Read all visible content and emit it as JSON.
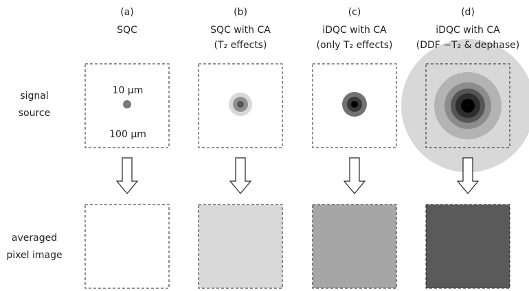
{
  "columns": [
    {
      "label": "(a)",
      "lines": [
        "SQC"
      ]
    },
    {
      "label": "(b)",
      "lines": [
        "SQC with CA",
        "(T₂ effects)"
      ]
    },
    {
      "label": "(c)",
      "lines": [
        "iDQC with CA",
        "(only T₂ effects)"
      ]
    },
    {
      "label": "(d)",
      "lines": [
        "iDQC with CA",
        "(DDF −T₂ & dephase)"
      ]
    }
  ],
  "rows": [
    {
      "lines": [
        "signal",
        "source"
      ]
    },
    {
      "lines": [
        "averaged",
        "pixel image"
      ]
    }
  ],
  "annotations": {
    "dot_size": "10 μm",
    "box_size": "100 μm"
  }
}
